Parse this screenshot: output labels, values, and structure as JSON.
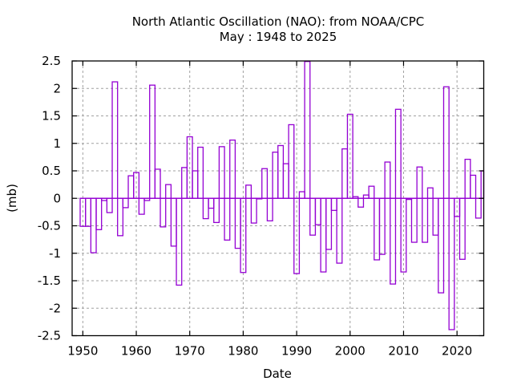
{
  "chart_data": {
    "type": "bar",
    "style": "outlined-histogram-steps",
    "title": "North Atlantic Oscillation (NAO): from NOAA/CPC",
    "subtitle": "May : 1948 to 2025",
    "xlabel": "Date",
    "ylabel": "(mb)",
    "xlim": [
      1948,
      2025
    ],
    "ylim": [
      -2.5,
      2.5
    ],
    "grid": true,
    "bar_color": "#9400d3",
    "x_ticks": [
      1950,
      1960,
      1970,
      1980,
      1990,
      2000,
      2010,
      2020
    ],
    "x_tick_labels": [
      "1950",
      "1960",
      "1970",
      "1980",
      "1990",
      "2000",
      "2010",
      "2020"
    ],
    "y_ticks": [
      2.5,
      2,
      1.5,
      1,
      0.5,
      0,
      -0.5,
      -1,
      -1.5,
      -2,
      -2.5
    ],
    "y_tick_labels": [
      "2.5",
      "2",
      "1.5",
      "1",
      "0.5",
      "0",
      "-0.5",
      "-1",
      "-1.5",
      "-2",
      "-2.5"
    ],
    "x": [
      1950,
      1951,
      1952,
      1953,
      1954,
      1955,
      1956,
      1957,
      1958,
      1959,
      1960,
      1961,
      1962,
      1963,
      1964,
      1965,
      1966,
      1967,
      1968,
      1969,
      1970,
      1971,
      1972,
      1973,
      1974,
      1975,
      1976,
      1977,
      1978,
      1979,
      1980,
      1981,
      1982,
      1983,
      1984,
      1985,
      1986,
      1987,
      1988,
      1989,
      1990,
      1991,
      1992,
      1993,
      1994,
      1995,
      1996,
      1997,
      1998,
      1999,
      2000,
      2001,
      2002,
      2003,
      2004,
      2005,
      2006,
      2007,
      2008,
      2009,
      2010,
      2011,
      2012,
      2013,
      2014,
      2015,
      2016,
      2017,
      2018,
      2019,
      2020,
      2021,
      2022,
      2023,
      2024,
      2025
    ],
    "values": [
      -0.51,
      -0.51,
      -0.99,
      -0.57,
      -0.04,
      -0.26,
      2.12,
      -0.68,
      -0.17,
      0.41,
      0.47,
      -0.29,
      -0.04,
      2.06,
      0.53,
      -0.52,
      0.25,
      -0.87,
      -1.58,
      0.56,
      1.12,
      0.5,
      0.93,
      -0.37,
      -0.18,
      -0.44,
      0.94,
      -0.76,
      1.06,
      -0.91,
      -1.35,
      0.24,
      -0.45,
      -0.01,
      0.54,
      -0.41,
      0.84,
      0.96,
      0.63,
      1.34,
      -1.37,
      0.12,
      2.49,
      -0.67,
      -0.48,
      -1.34,
      -0.93,
      -0.22,
      -1.18,
      0.9,
      1.53,
      0.03,
      -0.16,
      0.06,
      0.22,
      -1.12,
      -1.02,
      0.66,
      -1.56,
      1.62,
      -1.34,
      -0.02,
      -0.8,
      0.57,
      -0.8,
      0.19,
      -0.67,
      -1.72,
      2.03,
      -2.39,
      -0.33,
      -1.11,
      0.71,
      0.42,
      -0.36,
      0.5
    ]
  }
}
